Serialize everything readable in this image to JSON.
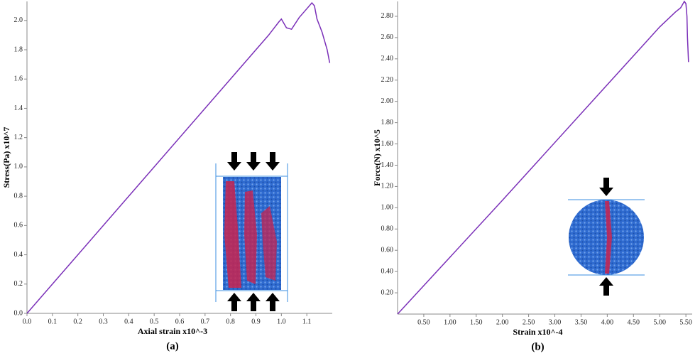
{
  "chart_data": [
    {
      "type": "line",
      "xlabel": "Axial strain x10^-3",
      "ylabel": "Stress(Pa) x10^7",
      "caption": "(a)",
      "color": "#7a2fb8",
      "x": [
        0,
        0.95,
        0.99,
        1.0,
        1.02,
        1.04,
        1.07,
        1.1,
        1.12,
        1.13,
        1.14,
        1.16,
        1.17,
        1.18,
        1.19
      ],
      "values": [
        0,
        1.9,
        1.99,
        2.01,
        1.95,
        1.94,
        2.02,
        2.08,
        2.12,
        2.1,
        2.01,
        1.92,
        1.86,
        1.8,
        1.71
      ],
      "xlim": [
        0,
        1.2
      ],
      "ylim": [
        0,
        2.13
      ],
      "xticks": [
        {
          "value": 0,
          "label": "0.0"
        },
        0.1,
        0.2,
        0.3,
        0.4,
        0.5,
        0.6,
        0.7,
        0.8,
        0.9,
        {
          "value": 1,
          "label": "1.0"
        },
        1.1
      ],
      "yticks": [
        {
          "value": 0,
          "label": "0.0"
        },
        0.2,
        0.4,
        0.6,
        0.8,
        {
          "value": 1,
          "label": "1.0"
        },
        1.2,
        1.4,
        1.6,
        1.8,
        {
          "value": 2,
          "label": "2.0"
        }
      ]
    },
    {
      "type": "line",
      "xlabel": "Strain x10^-4",
      "ylabel": "Force(N) x10^5",
      "caption": "(b)",
      "color": "#7a2fb8",
      "x": [
        0,
        2.0,
        5.0,
        5.3,
        5.4,
        5.47,
        5.5,
        5.52,
        5.53,
        5.55
      ],
      "values": [
        0,
        1.07,
        2.7,
        2.84,
        2.88,
        2.94,
        2.92,
        2.8,
        2.6,
        2.37
      ],
      "xlim": [
        0,
        5.62
      ],
      "ylim": [
        0,
        2.94
      ],
      "xticks": [
        {
          "value": 0.5,
          "label": "0.50"
        },
        {
          "value": 1,
          "label": "1.00"
        },
        {
          "value": 1.5,
          "label": "1.50"
        },
        {
          "value": 2,
          "label": "2.00"
        },
        {
          "value": 2.5,
          "label": "2.50"
        },
        {
          "value": 3,
          "label": "3.00"
        },
        {
          "value": 3.5,
          "label": "3.50"
        },
        {
          "value": 4,
          "label": "4.00"
        },
        {
          "value": 4.5,
          "label": "4.50"
        },
        {
          "value": 5,
          "label": "5.00"
        },
        {
          "value": 5.5,
          "label": "5.50"
        }
      ],
      "yticks": [
        {
          "value": 0.2,
          "label": "0.20"
        },
        {
          "value": 0.4,
          "label": "0.40"
        },
        {
          "value": 0.6,
          "label": "0.60"
        },
        {
          "value": 0.8,
          "label": "0.80"
        },
        {
          "value": 1,
          "label": "1.00"
        },
        {
          "value": 1.2,
          "label": "1.20"
        },
        {
          "value": 1.4,
          "label": "1.40"
        },
        {
          "value": 1.6,
          "label": "1.60"
        },
        {
          "value": 1.8,
          "label": "1.80"
        },
        {
          "value": 2,
          "label": "2.00"
        },
        {
          "value": 2.2,
          "label": "2.20"
        },
        {
          "value": 2.4,
          "label": "2.40"
        },
        {
          "value": 2.6,
          "label": "2.60"
        },
        {
          "value": 2.8,
          "label": "2.80"
        }
      ]
    }
  ]
}
